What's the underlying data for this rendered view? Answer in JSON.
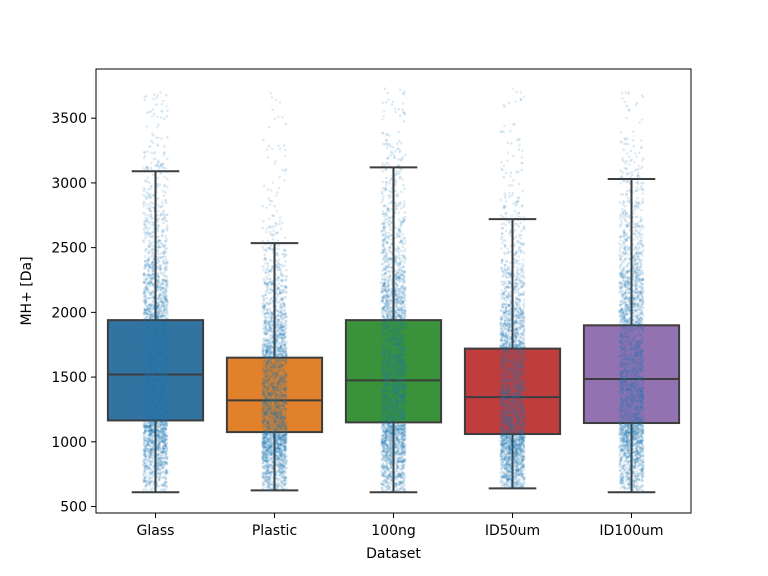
{
  "chart_data": {
    "type": "box",
    "title": "",
    "xlabel": "Dataset",
    "ylabel": "MH+ [Da]",
    "ylim": [
      450,
      3880
    ],
    "yticks": [
      500,
      1000,
      1500,
      2000,
      2500,
      3000,
      3500
    ],
    "categories": [
      "Glass",
      "Plastic",
      "100ng",
      "ID50um",
      "ID100um"
    ],
    "box_colors": [
      "#3274a1",
      "#e1812c",
      "#3a923a",
      "#c03d3e",
      "#9372b2"
    ],
    "strip_color": "#1f77b4",
    "boxes": [
      {
        "whisker_low": 610,
        "q1": 1165,
        "median": 1520,
        "q3": 1940,
        "whisker_high": 3090,
        "point_min": 610,
        "point_max": 3730
      },
      {
        "whisker_low": 625,
        "q1": 1075,
        "median": 1320,
        "q3": 1650,
        "whisker_high": 2535,
        "point_min": 625,
        "point_max": 3730
      },
      {
        "whisker_low": 610,
        "q1": 1150,
        "median": 1475,
        "q3": 1940,
        "whisker_high": 3120,
        "point_min": 610,
        "point_max": 3730
      },
      {
        "whisker_low": 640,
        "q1": 1060,
        "median": 1345,
        "q3": 1720,
        "whisker_high": 2720,
        "point_min": 640,
        "point_max": 3730
      },
      {
        "whisker_low": 610,
        "q1": 1145,
        "median": 1485,
        "q3": 1900,
        "whisker_high": 3030,
        "point_min": 610,
        "point_max": 3730
      }
    ]
  }
}
